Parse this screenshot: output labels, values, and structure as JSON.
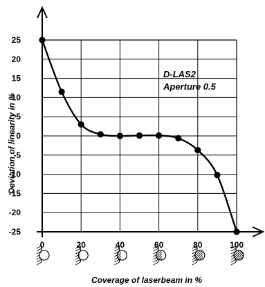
{
  "chart_data": {
    "type": "line",
    "title": "",
    "xlabel": "Coverage of laserbeam in %",
    "ylabel": "Deviation of linearity in %",
    "xlim": [
      0,
      100
    ],
    "ylim": [
      -25,
      25
    ],
    "x_ticks": [
      0,
      20,
      40,
      60,
      80,
      100
    ],
    "y_ticks": [
      25,
      20,
      15,
      10,
      5,
      0,
      -5,
      -10,
      -15,
      -20,
      -25
    ],
    "grid": true,
    "annotations": [
      "D-LAS2",
      "Aperture 0.5"
    ],
    "series": [
      {
        "x": [
          0,
          10,
          20,
          30,
          40,
          50,
          60,
          70,
          80,
          90,
          100
        ],
        "y": [
          25,
          11.5,
          3,
          0.4,
          0,
          0.1,
          0.1,
          -0.6,
          -3.7,
          -10.2,
          -25
        ]
      }
    ]
  }
}
